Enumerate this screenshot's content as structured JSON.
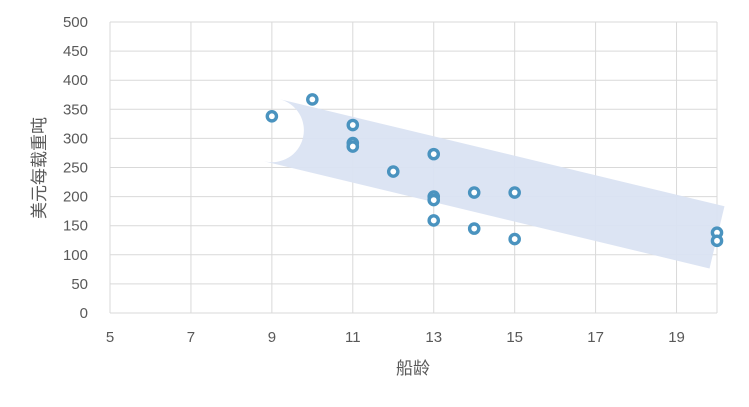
{
  "chart_data": {
    "type": "scatter",
    "title": "",
    "xlabel": "船龄",
    "ylabel": "美元每载重吨",
    "xlim": [
      5,
      20
    ],
    "ylim": [
      0,
      500
    ],
    "xticks": [
      5,
      7,
      9,
      11,
      13,
      15,
      17,
      19
    ],
    "yticks": [
      0,
      50,
      100,
      150,
      200,
      250,
      300,
      350,
      400,
      450,
      500
    ],
    "grid": true,
    "legend": "none",
    "series": [
      {
        "points": [
          {
            "x": 9,
            "y": 338
          },
          {
            "x": 10,
            "y": 367
          },
          {
            "x": 11,
            "y": 323
          },
          {
            "x": 11,
            "y": 292
          },
          {
            "x": 11,
            "y": 286
          },
          {
            "x": 12,
            "y": 243
          },
          {
            "x": 13,
            "y": 273
          },
          {
            "x": 13,
            "y": 200
          },
          {
            "x": 13,
            "y": 194
          },
          {
            "x": 13,
            "y": 159
          },
          {
            "x": 14,
            "y": 207
          },
          {
            "x": 14,
            "y": 145
          },
          {
            "x": 15,
            "y": 207
          },
          {
            "x": 15,
            "y": 127
          },
          {
            "x": 20,
            "y": 138
          },
          {
            "x": 20,
            "y": 124
          }
        ]
      }
    ],
    "trend_band": {
      "start": [
        9,
        314
      ],
      "end": [
        20,
        130
      ]
    },
    "colors": {
      "marker_stroke": "#4a93bf",
      "marker_fill": "#ffffff",
      "band": "#dae3f2",
      "grid": "#d9d9d9",
      "tick_text": "#595959"
    }
  }
}
